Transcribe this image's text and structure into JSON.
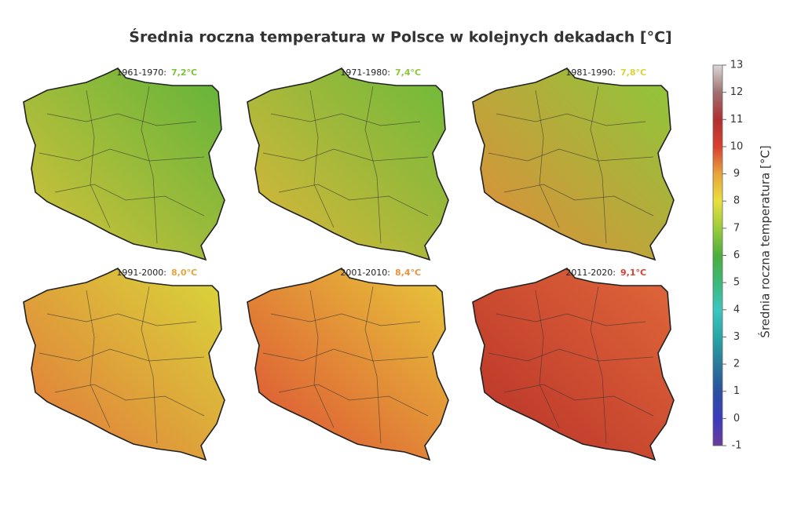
{
  "title": "Średnia roczna temperatura w Polsce w kolejnych dekadach [°C]",
  "panels": [
    {
      "period": "1961-1970:",
      "mean": "7,2°C",
      "color": "#7cc23a",
      "fill": [
        "#d9c23a",
        "#5fb43a"
      ]
    },
    {
      "period": "1971-1980:",
      "mean": "7,4°C",
      "color": "#8cc83a",
      "fill": [
        "#e0b63a",
        "#6cba3a"
      ]
    },
    {
      "period": "1981-1990:",
      "mean": "7,8°C",
      "color": "#d8d23a",
      "fill": [
        "#e48a3a",
        "#8cc83a"
      ]
    },
    {
      "period": "1991-2000:",
      "mean": "8,0°C",
      "color": "#e8a43c",
      "fill": [
        "#e4743a",
        "#d8d83a"
      ]
    },
    {
      "period": "2001-2010:",
      "mean": "8,4°C",
      "color": "#e8943c",
      "fill": [
        "#dc4c34",
        "#e8c83a"
      ]
    },
    {
      "period": "2011-2020:",
      "mean": "9,1°C",
      "color": "#d84030",
      "fill": [
        "#b83028",
        "#e0683a"
      ]
    }
  ],
  "colorbar": {
    "label": "Średnia roczna temperatura [°C]",
    "lim": [
      -1,
      13
    ],
    "ticks": [
      -1,
      0,
      1,
      2,
      3,
      4,
      5,
      6,
      7,
      8,
      9,
      10,
      11,
      12,
      13
    ],
    "colors": [
      "#6a3d9a",
      "#3b3bbd",
      "#2a4fa0",
      "#2a7a9a",
      "#27a7a7",
      "#3cc6c0",
      "#3cb87a",
      "#4cae3c",
      "#9bcc3c",
      "#e8e03c",
      "#e8a43c",
      "#d84030",
      "#b03030",
      "#a07070",
      "#d8d8d8"
    ]
  }
}
